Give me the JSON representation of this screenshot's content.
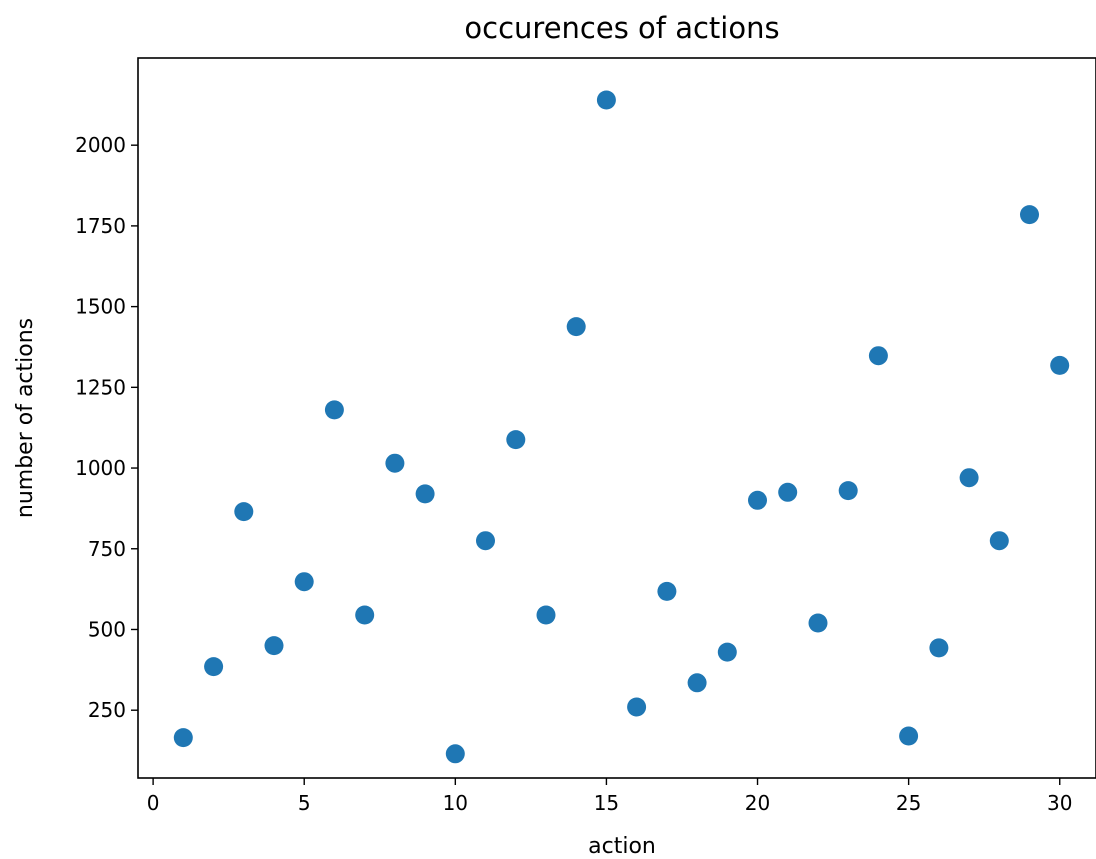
{
  "chart_data": {
    "type": "scatter",
    "title": "occurences of actions",
    "xlabel": "action",
    "ylabel": "number of actions",
    "x_ticks": [
      0,
      5,
      10,
      15,
      20,
      25,
      30
    ],
    "y_ticks": [
      250,
      500,
      750,
      1000,
      1250,
      1500,
      1750,
      2000
    ],
    "xlim": [
      -0.5,
      31.2
    ],
    "ylim": [
      40,
      2270
    ],
    "grid": false,
    "legend": null,
    "marker_color": "#1f77b4",
    "points": [
      {
        "x": 1,
        "y": 165
      },
      {
        "x": 2,
        "y": 385
      },
      {
        "x": 3,
        "y": 865
      },
      {
        "x": 4,
        "y": 450
      },
      {
        "x": 5,
        "y": 648
      },
      {
        "x": 6,
        "y": 1180
      },
      {
        "x": 7,
        "y": 545
      },
      {
        "x": 8,
        "y": 1015
      },
      {
        "x": 9,
        "y": 920
      },
      {
        "x": 10,
        "y": 115
      },
      {
        "x": 11,
        "y": 775
      },
      {
        "x": 12,
        "y": 1088
      },
      {
        "x": 13,
        "y": 545
      },
      {
        "x": 14,
        "y": 1438
      },
      {
        "x": 15,
        "y": 2140
      },
      {
        "x": 16,
        "y": 260
      },
      {
        "x": 17,
        "y": 618
      },
      {
        "x": 18,
        "y": 335
      },
      {
        "x": 19,
        "y": 430
      },
      {
        "x": 20,
        "y": 900
      },
      {
        "x": 21,
        "y": 925
      },
      {
        "x": 22,
        "y": 520
      },
      {
        "x": 23,
        "y": 930
      },
      {
        "x": 24,
        "y": 1348
      },
      {
        "x": 25,
        "y": 170
      },
      {
        "x": 26,
        "y": 443
      },
      {
        "x": 27,
        "y": 970
      },
      {
        "x": 28,
        "y": 775
      },
      {
        "x": 29,
        "y": 1785
      },
      {
        "x": 30,
        "y": 1318
      }
    ]
  }
}
